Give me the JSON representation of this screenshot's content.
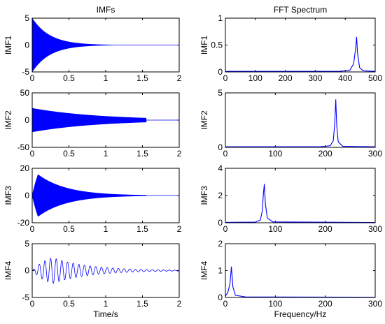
{
  "chart_data": [
    {
      "type": "line",
      "panel": "imf1-signal",
      "title": "IMFs",
      "xlabel": "",
      "ylabel": "IMF1",
      "xlim": [
        0,
        2
      ],
      "ylim": [
        -5,
        5
      ],
      "xticks": [
        0,
        0.5,
        1,
        1.5,
        2
      ],
      "yticks": [
        -5,
        0,
        5
      ],
      "color": "#0000ff",
      "series": [
        {
          "kind": "oscillation",
          "amplitude": 5,
          "decay": 4.2,
          "end": 1.15,
          "freq": 440
        }
      ]
    },
    {
      "type": "line",
      "panel": "imf1-spectrum",
      "title": "FFT Spectrum",
      "xlabel": "",
      "ylabel": "IMF1",
      "xlim": [
        0,
        500
      ],
      "ylim": [
        0,
        1
      ],
      "xticks": [
        0,
        100,
        200,
        300,
        400,
        500
      ],
      "yticks": [
        0,
        0.5,
        1
      ],
      "color": "#0000ff",
      "series": [
        {
          "kind": "peak",
          "x": [
            0,
            380,
            415,
            428,
            435,
            438,
            441,
            448,
            460,
            500
          ],
          "y": [
            0.01,
            0.01,
            0.03,
            0.15,
            0.45,
            0.65,
            0.35,
            0.08,
            0.02,
            0.01
          ]
        }
      ]
    },
    {
      "type": "line",
      "panel": "imf2-signal",
      "title": "",
      "xlabel": "",
      "ylabel": "IMF2",
      "xlim": [
        0,
        2
      ],
      "ylim": [
        -50,
        50
      ],
      "xticks": [
        0,
        0.5,
        1,
        1.5,
        2
      ],
      "yticks": [
        -50,
        0,
        50
      ],
      "color": "#0000ff",
      "series": [
        {
          "kind": "oscillation",
          "amplitude": 22,
          "decay": 1.1,
          "end": 1.55,
          "freq": 220
        }
      ]
    },
    {
      "type": "line",
      "panel": "imf2-spectrum",
      "title": "",
      "xlabel": "",
      "ylabel": "IMF2",
      "xlim": [
        0,
        300
      ],
      "ylim": [
        0,
        5
      ],
      "xticks": [
        0,
        100,
        200,
        300
      ],
      "yticks": [
        0,
        5
      ],
      "color": "#0000ff",
      "series": [
        {
          "kind": "peak",
          "x": [
            0,
            190,
            210,
            216,
            219,
            221,
            223,
            226,
            235,
            300
          ],
          "y": [
            0.05,
            0.05,
            0.15,
            0.6,
            2.2,
            4.4,
            2.0,
            0.5,
            0.1,
            0.05
          ]
        }
      ]
    },
    {
      "type": "line",
      "panel": "imf3-signal",
      "title": "",
      "xlabel": "",
      "ylabel": "IMF3",
      "xlim": [
        0,
        2
      ],
      "ylim": [
        -20,
        20
      ],
      "xticks": [
        0,
        0.5,
        1,
        1.5,
        2
      ],
      "yticks": [
        -20,
        0,
        20
      ],
      "color": "#0000ff",
      "series": [
        {
          "kind": "oscillation",
          "amplitude": 19,
          "decay": 2.6,
          "end": 1.55,
          "freq": 78,
          "attack": 0.08
        }
      ]
    },
    {
      "type": "line",
      "panel": "imf3-spectrum",
      "title": "",
      "xlabel": "",
      "ylabel": "IMF3",
      "xlim": [
        0,
        300
      ],
      "ylim": [
        0,
        4
      ],
      "xticks": [
        0,
        100,
        200,
        300
      ],
      "yticks": [
        0,
        2,
        4
      ],
      "color": "#0000ff",
      "series": [
        {
          "kind": "peak",
          "x": [
            0,
            60,
            70,
            74,
            76,
            78,
            80,
            84,
            95,
            300
          ],
          "y": [
            0.03,
            0.05,
            0.2,
            0.9,
            2.1,
            2.85,
            1.4,
            0.35,
            0.06,
            0.02
          ]
        }
      ]
    },
    {
      "type": "line",
      "panel": "imf4-signal",
      "title": "",
      "xlabel": "Time/s",
      "ylabel": "IMF4",
      "xlim": [
        0,
        2
      ],
      "ylim": [
        -5,
        5
      ],
      "xticks": [
        0,
        0.5,
        1,
        1.5,
        2
      ],
      "yticks": [
        -5,
        0,
        5
      ],
      "color": "#0000ff",
      "series": [
        {
          "kind": "oscillation",
          "amplitude": 4.2,
          "decay": 2.0,
          "end": 2.0,
          "freq": 13,
          "attack": 0.28
        }
      ]
    },
    {
      "type": "line",
      "panel": "imf4-spectrum",
      "title": "",
      "xlabel": "Frequency/Hz",
      "ylabel": "IMF4",
      "xlim": [
        0,
        300
      ],
      "ylim": [
        0,
        2
      ],
      "xticks": [
        0,
        100,
        200,
        300
      ],
      "yticks": [
        0,
        1,
        2
      ],
      "color": "#0000ff",
      "series": [
        {
          "kind": "peak",
          "x": [
            0,
            5,
            9,
            11,
            12,
            13,
            15,
            20,
            40,
            300
          ],
          "y": [
            0.05,
            0.2,
            0.5,
            0.9,
            1.15,
            0.9,
            0.4,
            0.08,
            0.02,
            0.01
          ]
        }
      ]
    }
  ]
}
